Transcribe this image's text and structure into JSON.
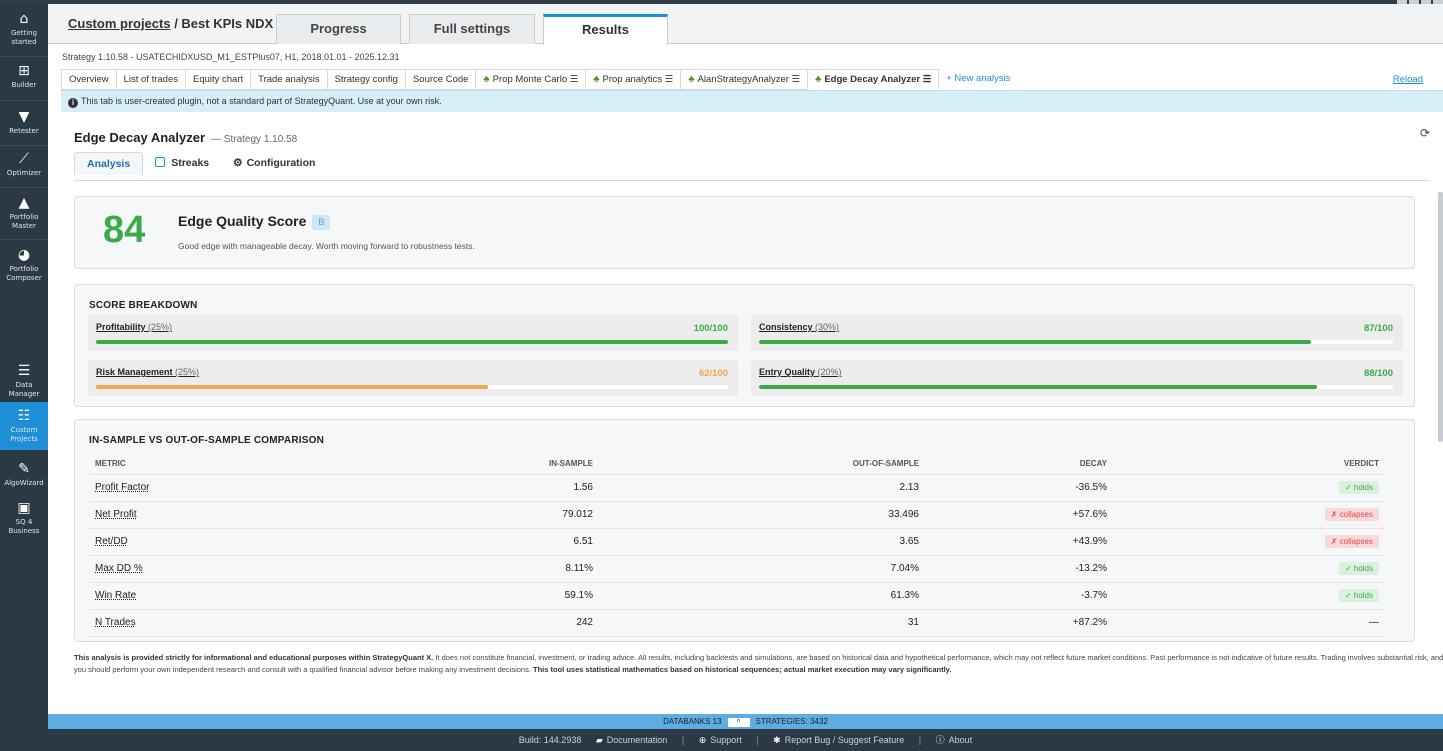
{
  "sidebar": {
    "items": [
      {
        "label": "Getting started",
        "icon": "home-icon",
        "glyph": "🏠"
      },
      {
        "label": "Builder",
        "icon": "plus-icon",
        "glyph": "⊞"
      },
      {
        "label": "Retester",
        "icon": "filter-icon",
        "glyph": "▼"
      },
      {
        "label": "Optimizer",
        "icon": "chart-line-icon",
        "glyph": "📈"
      },
      {
        "label": "Portfolio Master",
        "icon": "area-chart-icon",
        "glyph": "▲"
      },
      {
        "label": "Portfolio Composer",
        "icon": "pie-chart-icon",
        "glyph": "◕"
      },
      {
        "label": "Data Manager",
        "icon": "database-icon",
        "glyph": "☰"
      },
      {
        "label": "Custom Projects",
        "icon": "list-icon",
        "glyph": "☷"
      },
      {
        "label": "AlgoWizard",
        "icon": "wand-icon",
        "glyph": "✎"
      },
      {
        "label": "SQ 4 Business",
        "icon": "briefcase-icon",
        "glyph": "▣"
      }
    ]
  },
  "header": {
    "breadcrumb_link": "Custom projects",
    "breadcrumb_sep": " / ",
    "breadcrumb_current": "Best KPIs NDX",
    "tabs": [
      "Progress",
      "Full settings",
      "Results"
    ]
  },
  "strategy_line": "Strategy 1.10.58 - USATECHIDXUSD_M1_ESTPlus07, H1, 2018.01.01 - 2025.12.31",
  "subtabs": [
    {
      "label": "Overview"
    },
    {
      "label": "List of trades"
    },
    {
      "label": "Equity chart"
    },
    {
      "label": "Trade analysis"
    },
    {
      "label": "Strategy config"
    },
    {
      "label": "Source Code"
    },
    {
      "label": "Prop Monte Carlo ☰"
    },
    {
      "label": "Prop analytics ☰"
    },
    {
      "label": "AlanStrategyAnalyzer ☰"
    },
    {
      "label": "Edge Decay Analyzer ☰"
    },
    {
      "label": "+ New analysis"
    }
  ],
  "reload_label": "Reload",
  "warning": "This tab is user-created plugin, not a standard part of StrategyQuant. Use at your own risk.",
  "plugin": {
    "title": "Edge Decay Analyzer",
    "subtitle": "— Strategy 1.10.58",
    "tabs": [
      "Analysis",
      "Streaks",
      "Configuration"
    ]
  },
  "score": {
    "value": "84",
    "title": "Edge Quality Score",
    "grade": "B",
    "description": "Good edge with manageable decay. Worth moving forward to robustness tests."
  },
  "breakdown": {
    "title": "SCORE BREAKDOWN",
    "items": [
      {
        "name": "Profitability",
        "weight": "(25%)",
        "score": "100/100",
        "fraction": 1.0,
        "color": "#3daa4a"
      },
      {
        "name": "Consistency",
        "weight": "(30%)",
        "score": "87/100",
        "fraction": 0.87,
        "color": "#3daa4a"
      },
      {
        "name": "Risk Management",
        "weight": "(25%)",
        "score": "62/100",
        "fraction": 0.62,
        "color": "#f0a848"
      },
      {
        "name": "Entry Quality",
        "weight": "(20%)",
        "score": "88/100",
        "fraction": 0.88,
        "color": "#3daa4a"
      }
    ]
  },
  "comparison": {
    "title": "IN-SAMPLE VS OUT-OF-SAMPLE COMPARISON",
    "columns": [
      "METRIC",
      "IN-SAMPLE",
      "OUT-OF-SAMPLE",
      "DECAY",
      "VERDICT"
    ],
    "rows": [
      {
        "metric": "Profit Factor",
        "is": "1.56",
        "oos": "2.13",
        "decay": "-36.5%",
        "decay_class": "pos",
        "verdict": "✓ holds",
        "verdict_class": "vh"
      },
      {
        "metric": "Net Profit",
        "is": "79.012",
        "oos": "33.496",
        "decay": "+57.6%",
        "decay_class": "neg",
        "verdict": "✗ collapses",
        "verdict_class": "vc"
      },
      {
        "metric": "Ret/DD",
        "is": "6.51",
        "oos": "3.65",
        "decay": "+43.9%",
        "decay_class": "neg",
        "verdict": "✗ collapses",
        "verdict_class": "vc"
      },
      {
        "metric": "Max DD %",
        "is": "8.11%",
        "oos": "7.04%",
        "decay": "-13.2%",
        "decay_class": "pos",
        "verdict": "✓ holds",
        "verdict_class": "vh"
      },
      {
        "metric": "Win Rate",
        "is": "59.1%",
        "oos": "61.3%",
        "decay": "-3.7%",
        "decay_class": "pos",
        "verdict": "✓ holds",
        "verdict_class": "vh"
      },
      {
        "metric": "N Trades",
        "is": "242",
        "oos": "31",
        "decay": "+87.2%",
        "decay_class": "",
        "verdict": "—",
        "verdict_class": ""
      }
    ]
  },
  "disclaimer": {
    "bold1": "This analysis is provided strictly for informational and educational purposes within StrategyQuant X.",
    "text": " It does not constitute financial, investment, or trading advice. All results, including backtests and simulations, are based on historical data and hypothetical performance, which may not reflect future market conditions. Past performance is not indicative of future results. Trading involves substantial risk, and you should perform your own independent research and consult with a qualified financial advisor before making any investment decisions. ",
    "bold2": "This tool uses statistical mathematics based on historical sequences; actual market execution may vary significantly."
  },
  "statusbar": {
    "databanks": "DATABANKS 13",
    "strategies": "STRATEGIES: 3432"
  },
  "footer": {
    "build": "Build: 144.2938",
    "documentation": "Documentation",
    "support": "Support",
    "report": "Report Bug / Suggest Feature",
    "about": "About"
  }
}
